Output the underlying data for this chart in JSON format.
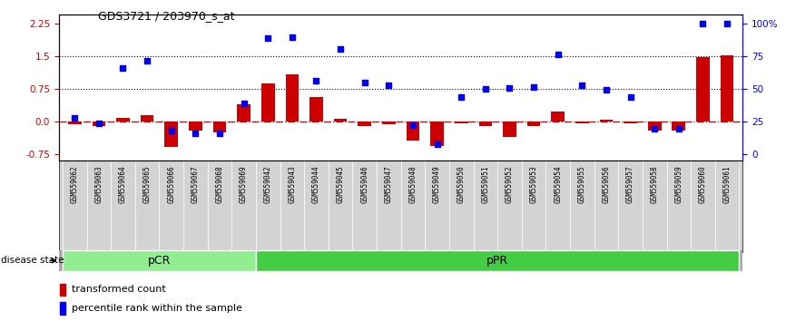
{
  "title": "GDS3721 / 203970_s_at",
  "samples": [
    "GSM559062",
    "GSM559063",
    "GSM559064",
    "GSM559065",
    "GSM559066",
    "GSM559067",
    "GSM559068",
    "GSM559069",
    "GSM559042",
    "GSM559043",
    "GSM559044",
    "GSM559045",
    "GSM559046",
    "GSM559047",
    "GSM559048",
    "GSM559049",
    "GSM559050",
    "GSM559051",
    "GSM559052",
    "GSM559053",
    "GSM559054",
    "GSM559055",
    "GSM559056",
    "GSM559057",
    "GSM559058",
    "GSM559059",
    "GSM559060",
    "GSM559061"
  ],
  "transformed_count": [
    -0.07,
    -0.12,
    0.07,
    0.13,
    -0.58,
    -0.22,
    -0.26,
    0.38,
    0.87,
    1.08,
    0.55,
    0.06,
    -0.1,
    -0.07,
    -0.45,
    -0.57,
    -0.05,
    -0.1,
    -0.35,
    -0.1,
    0.22,
    -0.05,
    0.03,
    -0.04,
    -0.22,
    -0.22,
    1.48,
    1.52
  ],
  "percentile_rank": [
    0.08,
    -0.05,
    1.22,
    1.38,
    -0.22,
    -0.27,
    -0.28,
    0.4,
    1.9,
    1.93,
    0.93,
    1.65,
    0.89,
    0.83,
    -0.09,
    -0.52,
    0.55,
    0.75,
    0.76,
    0.79,
    1.53,
    0.83,
    0.72,
    0.55,
    -0.17,
    -0.17,
    2.25,
    2.25
  ],
  "pcr_count": 8,
  "ppr_count": 20,
  "ylim": [
    -0.9,
    2.45
  ],
  "yticks_left": [
    -0.75,
    0.0,
    0.75,
    1.5,
    2.25
  ],
  "yticks_right_pos": [
    -0.75,
    0.0,
    0.75,
    1.5,
    2.25
  ],
  "yticks_right_labels": [
    "0",
    "25",
    "50",
    "75",
    "100%"
  ],
  "hline1": 0.75,
  "hline2": 1.5,
  "hline_zero": 0.0,
  "bar_color": "#cc0000",
  "dot_color": "#0000ee",
  "cell_bg": "#d3d3d3",
  "pcr_color": "#90ee90",
  "ppr_color": "#44cc44",
  "bg_color": "#ffffff",
  "legend_bar": "transformed count",
  "legend_dot": "percentile rank within the sample",
  "disease_state_label": "disease state",
  "pcr_label": "pCR",
  "ppr_label": "pPR"
}
